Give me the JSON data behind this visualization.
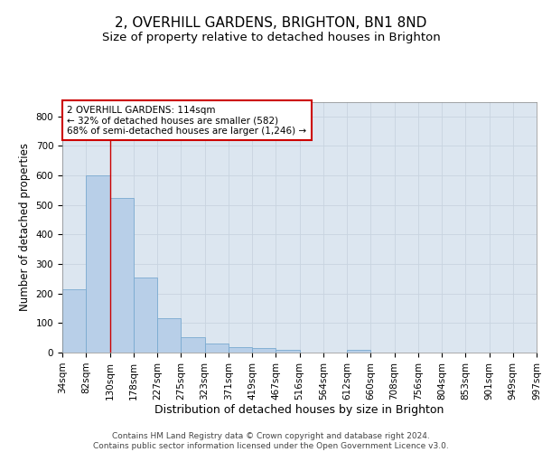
{
  "title": "2, OVERHILL GARDENS, BRIGHTON, BN1 8ND",
  "subtitle": "Size of property relative to detached houses in Brighton",
  "xlabel": "Distribution of detached houses by size in Brighton",
  "ylabel": "Number of detached properties",
  "bar_values": [
    215,
    600,
    525,
    255,
    115,
    52,
    30,
    18,
    15,
    10,
    0,
    0,
    8,
    0,
    0,
    0,
    0,
    0,
    0,
    0
  ],
  "bin_labels": [
    "34sqm",
    "82sqm",
    "130sqm",
    "178sqm",
    "227sqm",
    "275sqm",
    "323sqm",
    "371sqm",
    "419sqm",
    "467sqm",
    "516sqm",
    "564sqm",
    "612sqm",
    "660sqm",
    "708sqm",
    "756sqm",
    "804sqm",
    "853sqm",
    "901sqm",
    "949sqm",
    "997sqm"
  ],
  "bar_color": "#b8cfe8",
  "bar_edge_color": "#7aaad0",
  "grid_color": "#c8d4e0",
  "background_color": "#dce6f0",
  "red_line_x": 1.5,
  "annotation_text": "2 OVERHILL GARDENS: 114sqm\n← 32% of detached houses are smaller (582)\n68% of semi-detached houses are larger (1,246) →",
  "annotation_box_color": "#ffffff",
  "annotation_border_color": "#cc0000",
  "ylim": [
    0,
    850
  ],
  "yticks": [
    0,
    100,
    200,
    300,
    400,
    500,
    600,
    700,
    800
  ],
  "footer_text": "Contains HM Land Registry data © Crown copyright and database right 2024.\nContains public sector information licensed under the Open Government Licence v3.0.",
  "title_fontsize": 11,
  "subtitle_fontsize": 9.5,
  "xlabel_fontsize": 9,
  "ylabel_fontsize": 8.5,
  "tick_fontsize": 7.5,
  "footer_fontsize": 6.5,
  "annotation_fontsize": 7.5
}
